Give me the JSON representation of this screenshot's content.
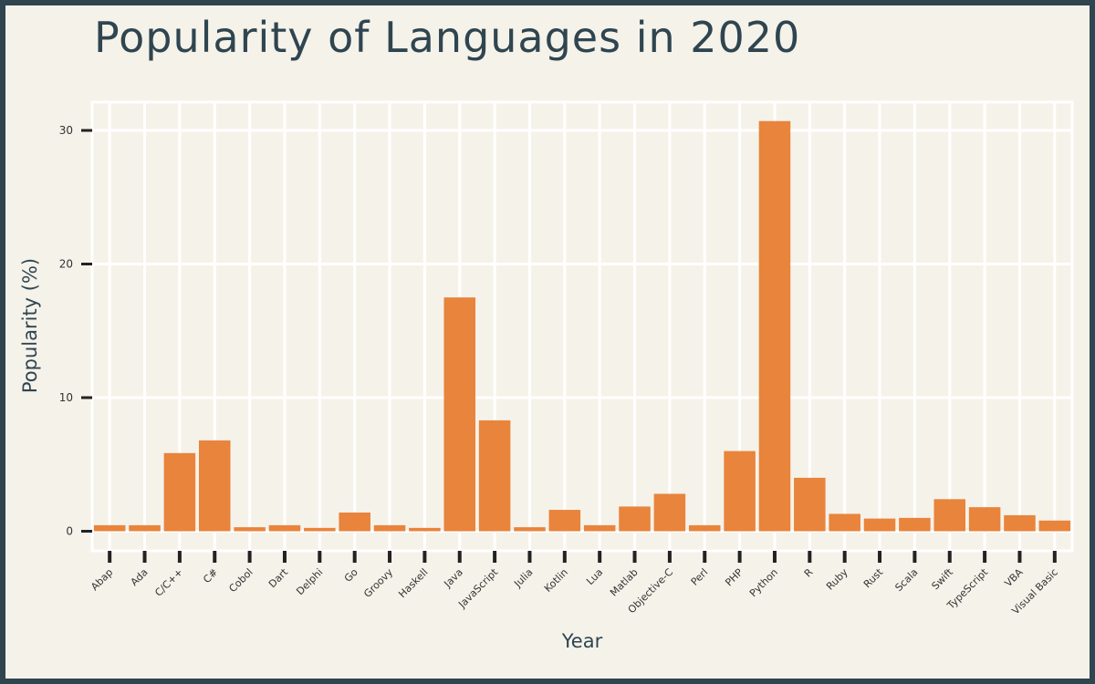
{
  "chart_data": {
    "type": "bar",
    "title": "Popularity of Languages in 2020",
    "xlabel": "Year",
    "ylabel": "Popularity (%)",
    "categories": [
      "Abap",
      "Ada",
      "C/C++",
      "C#",
      "Cobol",
      "Dart",
      "Delphi",
      "Go",
      "Groovy",
      "Haskell",
      "Java",
      "JavaScript",
      "Julia",
      "Kotlin",
      "Lua",
      "Matlab",
      "Objective-C",
      "Perl",
      "PHP",
      "Python",
      "R",
      "Ruby",
      "Rust",
      "Scala",
      "Swift",
      "TypeScript",
      "VBA",
      "Visual Basic"
    ],
    "values": [
      0.45,
      0.45,
      5.85,
      6.8,
      0.3,
      0.45,
      0.25,
      1.4,
      0.45,
      0.25,
      17.5,
      8.3,
      0.3,
      1.6,
      0.45,
      1.85,
      2.8,
      0.45,
      6.0,
      30.7,
      4.0,
      1.3,
      0.95,
      1.0,
      2.4,
      1.8,
      1.2,
      0.8
    ],
    "yticks": [
      0,
      10,
      20,
      30
    ],
    "ylim": [
      -1.5,
      33
    ],
    "grid": true,
    "bar_color": "#e8843c",
    "background_color": "#f5f2ea",
    "border_color": "#2f4550"
  }
}
